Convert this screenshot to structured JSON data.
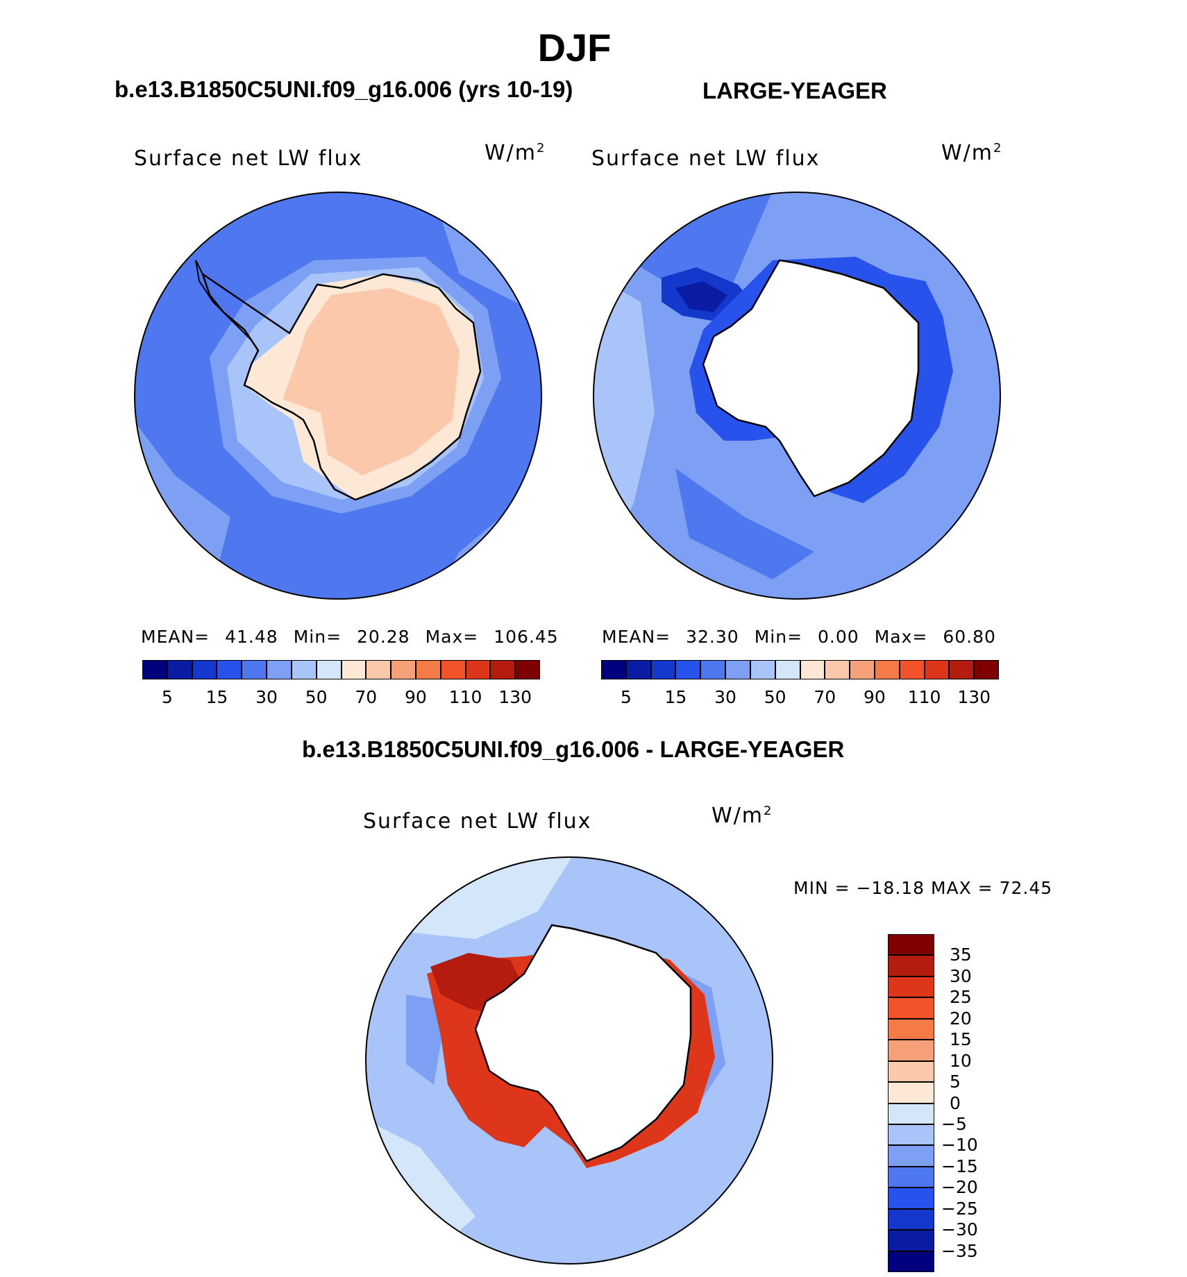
{
  "figure": {
    "title": "DJF",
    "case_title_left": "b.e13.B1850C5UNI.f09_g16.006 (yrs 10-19)",
    "case_title_right": "LARGE-YEAGER",
    "case_title_diff": "b.e13.B1850C5UNI.f09_g16.006 - LARGE-YEAGER"
  },
  "panels": [
    {
      "id": "model",
      "label": "Surface net LW flux",
      "units": "W/m",
      "units_exponent": "2",
      "stats": {
        "mean_label": "MEAN=",
        "mean": "41.48",
        "min_label": "Min=",
        "min": "20.28",
        "max_label": "Max=",
        "max": "106.45"
      }
    },
    {
      "id": "obs",
      "label": "Surface net LW flux",
      "units": "W/m",
      "units_exponent": "2",
      "stats": {
        "mean_label": "MEAN=",
        "mean": "32.30",
        "min_label": "Min=",
        "min": "0.00",
        "max_label": "Max=",
        "max": "60.80"
      }
    },
    {
      "id": "diff",
      "label": "Surface net LW flux",
      "units": "W/m",
      "units_exponent": "2",
      "range_text": "MIN = −18.18 MAX =   72.45"
    }
  ],
  "colorbar_abs": {
    "colors": [
      "#00007f",
      "#0b1ca4",
      "#1438cc",
      "#2753ec",
      "#4f78f0",
      "#7ea0f4",
      "#a9c4f8",
      "#d4e6fa",
      "#fde8d6",
      "#fbc8ac",
      "#f6a07a",
      "#f47a48",
      "#f2532a",
      "#dd361a",
      "#b31c0e",
      "#7f0000"
    ],
    "tick_labels": [
      "5",
      "15",
      "30",
      "50",
      "70",
      "90",
      "110",
      "130"
    ]
  },
  "colorbar_diff": {
    "colors": [
      "#7f0000",
      "#b31c0e",
      "#dd361a",
      "#f2532a",
      "#f47a48",
      "#f6a07a",
      "#fbc8ac",
      "#fde8d6",
      "#d4e6fa",
      "#a9c4f8",
      "#7ea0f4",
      "#4f78f0",
      "#2753ec",
      "#1438cc",
      "#0b1ca4",
      "#00007f"
    ],
    "tick_labels": [
      "35",
      "30",
      "25",
      "20",
      "15",
      "10",
      "5",
      "0",
      "−5",
      "−10",
      "−15",
      "−20",
      "−25",
      "−30",
      "−35"
    ]
  },
  "colors": {
    "ocean_model": "#4f78f0",
    "ice_model": "#fbc8ac",
    "ocean_obs": "#7ea0f4",
    "diff_ocean": "#a9c4f8",
    "diff_coast": "#dd361a"
  }
}
